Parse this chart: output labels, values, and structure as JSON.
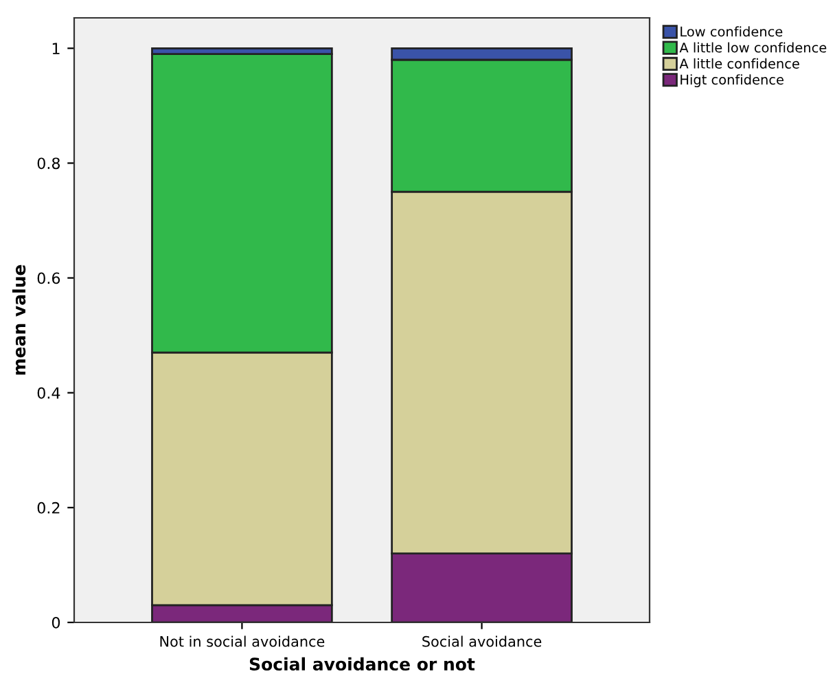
{
  "chart_data": {
    "type": "bar",
    "stacked": true,
    "xlabel": "Social avoidance or not",
    "ylabel": "mean value",
    "categories": [
      "Not in social avoidance",
      "Social avoidance"
    ],
    "series": [
      {
        "name": "Higt confidence",
        "color": "#7b287b",
        "values": [
          0.03,
          0.12
        ]
      },
      {
        "name": "A little confidence",
        "color": "#d5d09a",
        "values": [
          0.44,
          0.63
        ]
      },
      {
        "name": "A little low confidence",
        "color": "#31b94b",
        "values": [
          0.52,
          0.23
        ]
      },
      {
        "name": "Low confidence",
        "color": "#3a53a8",
        "values": [
          0.01,
          0.02
        ]
      }
    ],
    "ylim": [
      0,
      1.053
    ],
    "yticks": [
      0,
      0.2,
      0.4,
      0.6,
      0.8,
      1
    ],
    "grid": false,
    "legend": "top right"
  }
}
